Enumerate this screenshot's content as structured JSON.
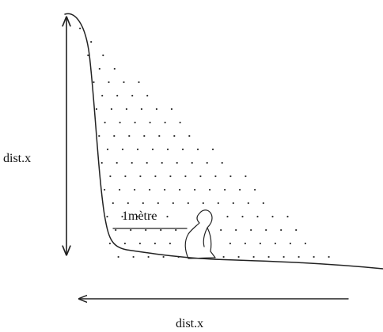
{
  "labels": {
    "height": "dist.x",
    "person": "1mètre",
    "width": "dist.x"
  }
}
